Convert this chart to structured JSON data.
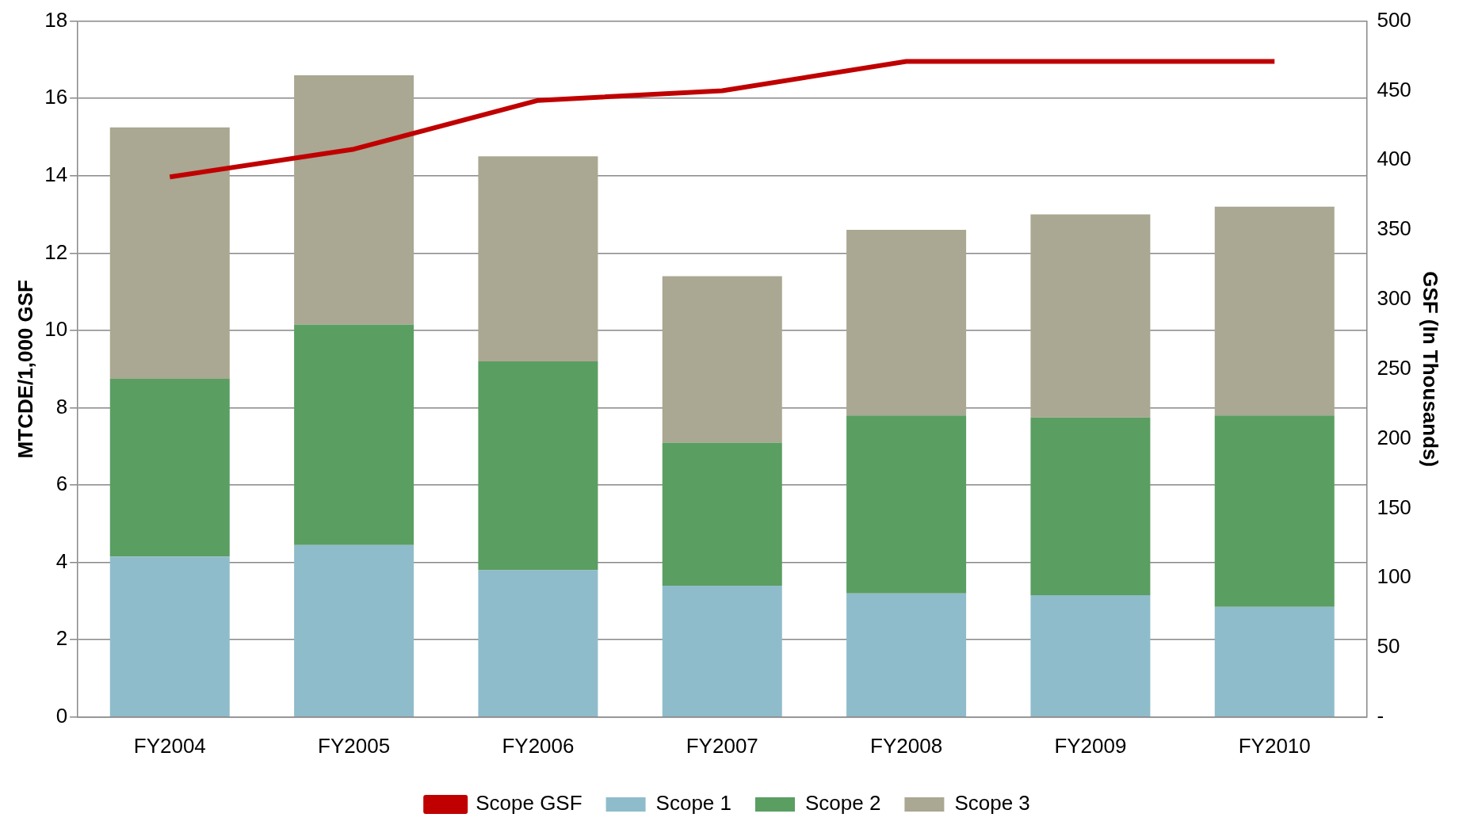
{
  "chart_data": {
    "type": "bar",
    "stacked": true,
    "categories": [
      "FY2004",
      "FY2005",
      "FY2006",
      "FY2007",
      "FY2008",
      "FY2009",
      "FY2010"
    ],
    "series": [
      {
        "name": "Scope 1",
        "color": "#8fbccb",
        "values": [
          4.15,
          4.45,
          3.8,
          3.4,
          3.2,
          3.15,
          2.85
        ]
      },
      {
        "name": "Scope 2",
        "color": "#5a9e62",
        "values": [
          4.6,
          5.7,
          5.4,
          3.7,
          4.6,
          4.6,
          4.95
        ]
      },
      {
        "name": "Scope 3",
        "color": "#aaa792",
        "values": [
          6.5,
          6.45,
          5.3,
          4.3,
          4.8,
          5.25,
          5.4
        ]
      },
      {
        "name": "Scope GSF",
        "type": "line",
        "axis": "y2",
        "color": "#c00000",
        "marker": "none",
        "values": [
          388,
          408,
          443,
          450,
          471,
          471,
          471
        ]
      }
    ],
    "ylabel": "MTCDE/1,000 GSF",
    "y2label": "GSF (In Thousands)",
    "ylim": [
      0,
      18
    ],
    "yticks": [
      0,
      2,
      4,
      6,
      8,
      10,
      12,
      14,
      16,
      18
    ],
    "y2lim": [
      0,
      500
    ],
    "y2ticks": [
      {
        "value": 0,
        "label": "-"
      },
      50,
      100,
      150,
      200,
      250,
      300,
      350,
      400,
      450,
      500
    ],
    "grid": "y",
    "legend": "bottom"
  }
}
